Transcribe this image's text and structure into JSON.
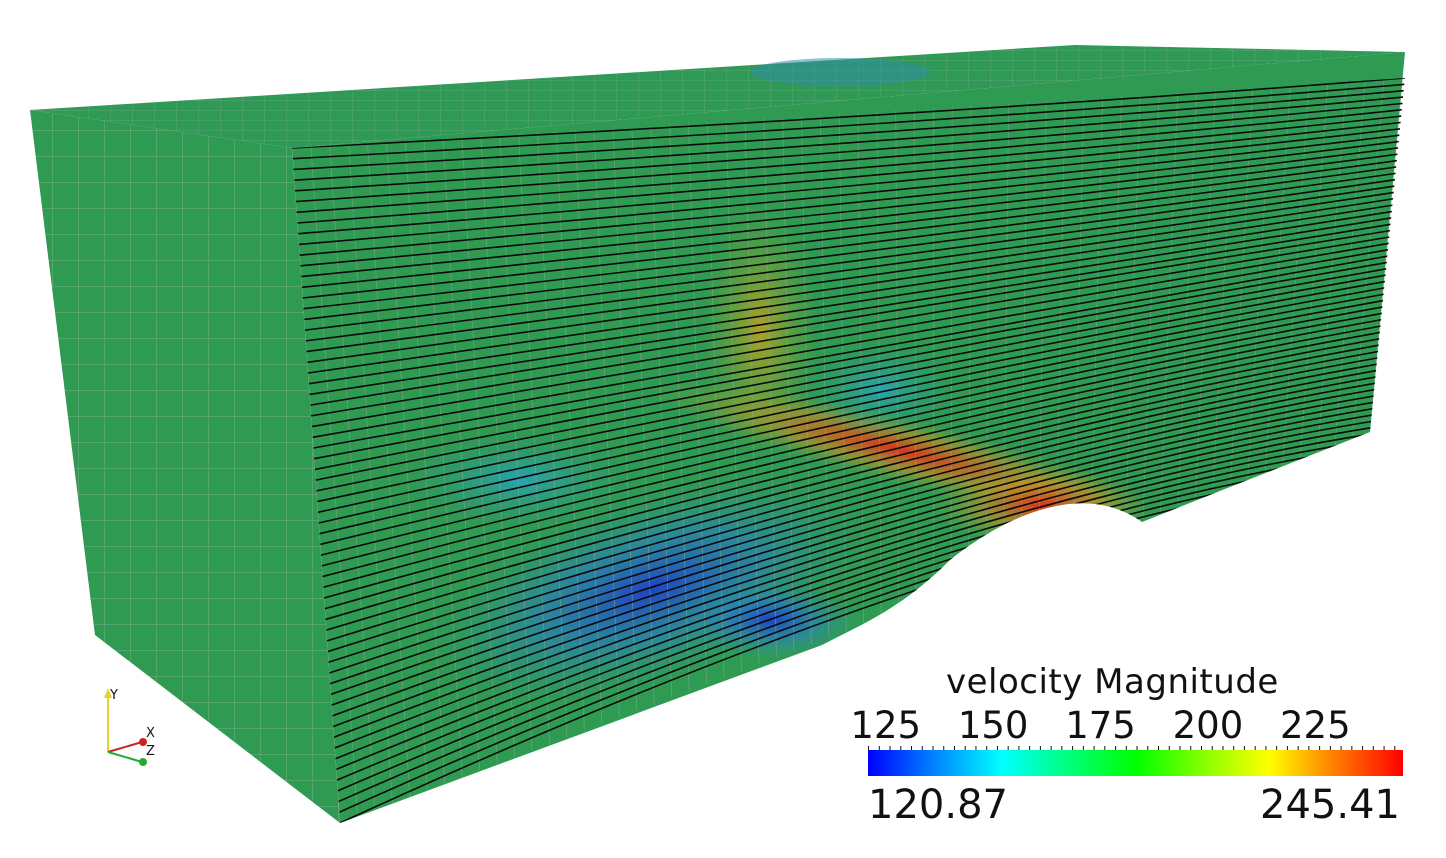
{
  "colorbar": {
    "title": "velocity Magnitude",
    "tick_labels": [
      "125",
      "150",
      "175",
      "200",
      "225"
    ],
    "tick_values": [
      125,
      150,
      175,
      200,
      225
    ],
    "range_min": "120.87",
    "range_max": "245.41",
    "min_value": 120.87,
    "max_value": 245.41,
    "colormap": [
      "#0000ff",
      "#00ffff",
      "#00ff00",
      "#ffff00",
      "#ff0000"
    ]
  },
  "axes": {
    "x": "X",
    "y": "Y",
    "z": "Z"
  },
  "colors": {
    "mesh_base": "#2f9a52",
    "mesh_lines": "#8fb59a",
    "streamlines": "#0a0a0a",
    "axis_x": "#cc2222",
    "axis_y": "#e6d22a",
    "axis_z": "#22aa33"
  }
}
